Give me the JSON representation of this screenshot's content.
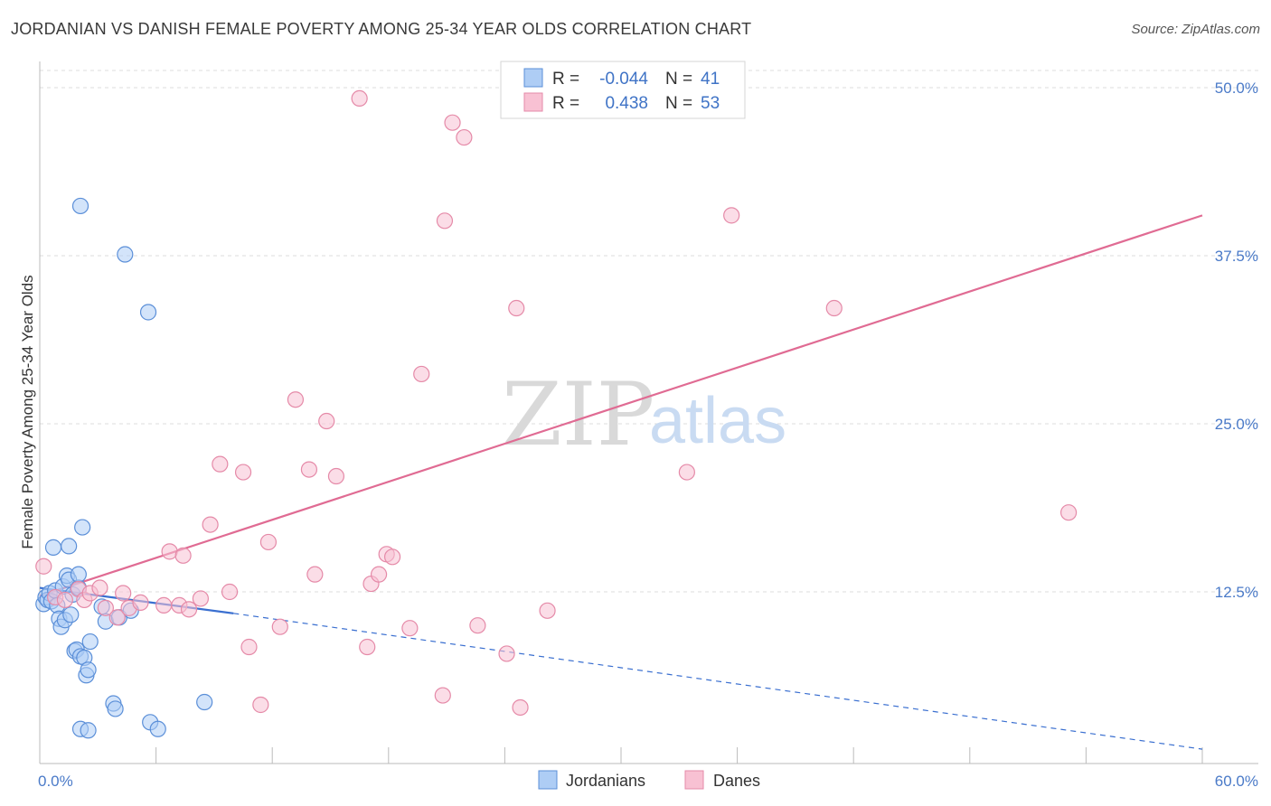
{
  "title": "JORDANIAN VS DANISH FEMALE POVERTY AMONG 25-34 YEAR OLDS CORRELATION CHART",
  "source": "Source: ZipAtlas.com",
  "watermark": {
    "zip": "ZIP",
    "atlas": "atlas"
  },
  "colors": {
    "jordanians_fill": "#aecdf5",
    "jordanians_stroke": "#5b8fd8",
    "jordanians_line": "#3a6fd0",
    "danes_fill": "#f8c1d3",
    "danes_stroke": "#e58aa8",
    "danes_line": "#e06b93",
    "grid": "#dddddd"
  },
  "legend": {
    "rows": [
      {
        "r_label": "R =",
        "r_value": "-0.044",
        "n_label": "N =",
        "n_value": "41"
      },
      {
        "r_label": "R =",
        "r_value": "0.438",
        "n_label": "N =",
        "n_value": "53"
      }
    ]
  },
  "bottom_legend": [
    "Jordanians",
    "Danes"
  ],
  "chart_data": {
    "type": "scatter",
    "xlabel": "",
    "ylabel": "Female Poverty Among 25-34 Year Olds",
    "xlim": [
      0,
      60
    ],
    "ylim": [
      0,
      51
    ],
    "x_tick_labels": [
      {
        "value": 0,
        "label": "0.0%"
      },
      {
        "value": 60,
        "label": "60.0%"
      }
    ],
    "y_tick_labels": [
      {
        "value": 12.5,
        "label": "12.5%"
      },
      {
        "value": 25,
        "label": "25.0%"
      },
      {
        "value": 37.5,
        "label": "37.5%"
      },
      {
        "value": 50,
        "label": "50.0%"
      }
    ],
    "grid": true,
    "legend_position": "top-center",
    "series": [
      {
        "name": "Jordanians",
        "r": -0.044,
        "n": 41,
        "trend": {
          "x": [
            0,
            10
          ],
          "y": [
            12.8,
            10.9
          ],
          "dashed_to": [
            60,
            0.8
          ]
        },
        "points": [
          [
            0.2,
            11.6
          ],
          [
            0.3,
            12.1
          ],
          [
            0.4,
            11.9
          ],
          [
            0.5,
            12.4
          ],
          [
            0.6,
            11.8
          ],
          [
            0.7,
            15.8
          ],
          [
            0.8,
            12.6
          ],
          [
            0.9,
            11.5
          ],
          [
            1.0,
            10.5
          ],
          [
            1.1,
            9.9
          ],
          [
            1.2,
            12.9
          ],
          [
            1.3,
            10.4
          ],
          [
            1.4,
            13.7
          ],
          [
            1.5,
            13.4
          ],
          [
            1.6,
            10.8
          ],
          [
            1.5,
            15.9
          ],
          [
            1.7,
            12.3
          ],
          [
            1.8,
            8.1
          ],
          [
            1.9,
            8.2
          ],
          [
            2.0,
            12.8
          ],
          [
            2.0,
            13.8
          ],
          [
            2.1,
            7.7
          ],
          [
            2.2,
            17.3
          ],
          [
            2.3,
            7.6
          ],
          [
            2.4,
            6.3
          ],
          [
            2.5,
            6.7
          ],
          [
            2.6,
            8.8
          ],
          [
            2.1,
            41.2
          ],
          [
            2.1,
            2.3
          ],
          [
            2.5,
            2.2
          ],
          [
            3.2,
            11.4
          ],
          [
            3.4,
            10.3
          ],
          [
            3.8,
            4.2
          ],
          [
            3.9,
            3.8
          ],
          [
            4.1,
            10.6
          ],
          [
            4.4,
            37.6
          ],
          [
            4.7,
            11.1
          ],
          [
            5.6,
            33.3
          ],
          [
            5.7,
            2.8
          ],
          [
            6.1,
            2.3
          ],
          [
            8.5,
            4.3
          ]
        ]
      },
      {
        "name": "Danes",
        "r": 0.438,
        "n": 53,
        "trend": {
          "x": [
            0,
            60
          ],
          "y": [
            12.2,
            40.5
          ]
        },
        "points": [
          [
            0.2,
            14.4
          ],
          [
            0.8,
            12.1
          ],
          [
            1.3,
            11.9
          ],
          [
            2.0,
            12.7
          ],
          [
            2.3,
            11.9
          ],
          [
            2.6,
            12.4
          ],
          [
            3.1,
            12.8
          ],
          [
            3.4,
            11.3
          ],
          [
            4.0,
            10.6
          ],
          [
            4.3,
            12.4
          ],
          [
            4.6,
            11.3
          ],
          [
            5.2,
            11.7
          ],
          [
            6.4,
            11.5
          ],
          [
            6.7,
            15.5
          ],
          [
            7.2,
            11.5
          ],
          [
            7.4,
            15.2
          ],
          [
            7.7,
            11.2
          ],
          [
            8.3,
            12.0
          ],
          [
            8.8,
            17.5
          ],
          [
            9.3,
            22.0
          ],
          [
            9.8,
            12.5
          ],
          [
            10.5,
            21.4
          ],
          [
            10.8,
            8.4
          ],
          [
            11.4,
            4.1
          ],
          [
            11.8,
            16.2
          ],
          [
            12.4,
            9.9
          ],
          [
            13.2,
            26.8
          ],
          [
            13.9,
            21.6
          ],
          [
            14.2,
            13.8
          ],
          [
            14.8,
            25.2
          ],
          [
            15.3,
            21.1
          ],
          [
            16.5,
            49.2
          ],
          [
            16.9,
            8.4
          ],
          [
            17.1,
            13.1
          ],
          [
            17.5,
            13.8
          ],
          [
            17.9,
            15.3
          ],
          [
            18.2,
            15.1
          ],
          [
            19.1,
            9.8
          ],
          [
            19.7,
            28.7
          ],
          [
            20.8,
            4.8
          ],
          [
            20.9,
            40.1
          ],
          [
            21.3,
            47.4
          ],
          [
            21.9,
            46.3
          ],
          [
            22.6,
            10.0
          ],
          [
            24.1,
            7.9
          ],
          [
            24.6,
            33.6
          ],
          [
            24.8,
            3.9
          ],
          [
            26.2,
            11.1
          ],
          [
            27.6,
            50.8
          ],
          [
            33.4,
            21.4
          ],
          [
            35.7,
            40.5
          ],
          [
            41.0,
            33.6
          ],
          [
            53.1,
            18.4
          ]
        ]
      }
    ]
  }
}
